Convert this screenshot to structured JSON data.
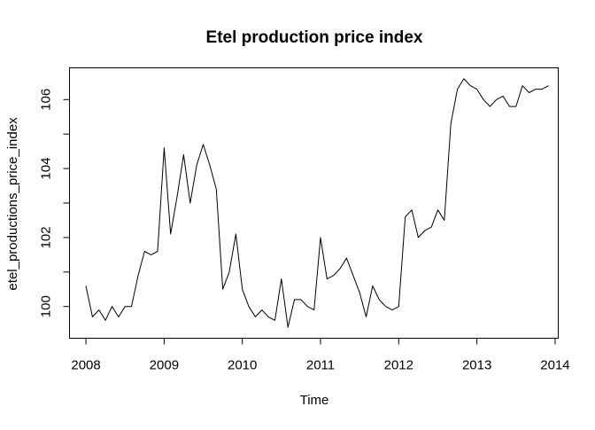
{
  "chart_data": {
    "type": "line",
    "title": "Etel production price index",
    "xlabel": "Time",
    "ylabel": "etel_productions_price_index",
    "xlim": [
      2007.79,
      2014.04
    ],
    "ylim": [
      99.08,
      106.92
    ],
    "x_ticks": [
      2008,
      2009,
      2010,
      2011,
      2012,
      2013,
      2014
    ],
    "x_tick_labels": [
      "2008",
      "2009",
      "2010",
      "2011",
      "2012",
      "2013",
      "2014"
    ],
    "y_ticks": [
      100,
      102,
      104,
      106
    ],
    "y_tick_labels": [
      "100",
      "102",
      "104",
      "106"
    ],
    "y_minor_ticks": [
      101,
      103,
      105
    ],
    "grid": false,
    "line_color": "#000000",
    "series": [
      {
        "x": [
          2008.0,
          2008.083,
          2008.167,
          2008.25,
          2008.333,
          2008.417,
          2008.5,
          2008.583,
          2008.667,
          2008.75,
          2008.833,
          2008.917,
          2009.0,
          2009.083,
          2009.167,
          2009.25,
          2009.333,
          2009.417,
          2009.5,
          2009.583,
          2009.667,
          2009.75,
          2009.833,
          2009.917,
          2010.0,
          2010.083,
          2010.167,
          2010.25,
          2010.333,
          2010.417,
          2010.5,
          2010.583,
          2010.667,
          2010.75,
          2010.833,
          2010.917,
          2011.0,
          2011.083,
          2011.167,
          2011.25,
          2011.333,
          2011.417,
          2011.5,
          2011.583,
          2011.667,
          2011.75,
          2011.833,
          2011.917,
          2012.0,
          2012.083,
          2012.167,
          2012.25,
          2012.333,
          2012.417,
          2012.5,
          2012.583,
          2012.667,
          2012.75,
          2012.833,
          2012.917,
          2013.0,
          2013.083,
          2013.167,
          2013.25,
          2013.333,
          2013.417,
          2013.5,
          2013.583,
          2013.667,
          2013.75,
          2013.833,
          2013.917
        ],
        "values": [
          100.6,
          99.7,
          99.9,
          99.6,
          100.0,
          99.7,
          100.0,
          100.0,
          100.9,
          101.6,
          101.5,
          101.6,
          104.6,
          102.1,
          103.2,
          104.4,
          103.0,
          104.1,
          104.7,
          104.1,
          103.4,
          100.5,
          101.0,
          102.1,
          100.5,
          100.0,
          99.7,
          99.9,
          99.7,
          99.6,
          100.8,
          99.4,
          100.2,
          100.2,
          100.0,
          99.9,
          102.0,
          100.8,
          100.9,
          101.1,
          101.4,
          100.9,
          100.4,
          99.7,
          100.6,
          100.2,
          100.0,
          99.9,
          100.0,
          102.6,
          102.8,
          102.0,
          102.2,
          102.3,
          102.8,
          102.5,
          105.3,
          106.3,
          106.6,
          106.4,
          106.3,
          106.0,
          105.8,
          106.0,
          106.1,
          105.8,
          105.8,
          106.4,
          106.2,
          106.3,
          106.3,
          106.4
        ]
      }
    ]
  }
}
